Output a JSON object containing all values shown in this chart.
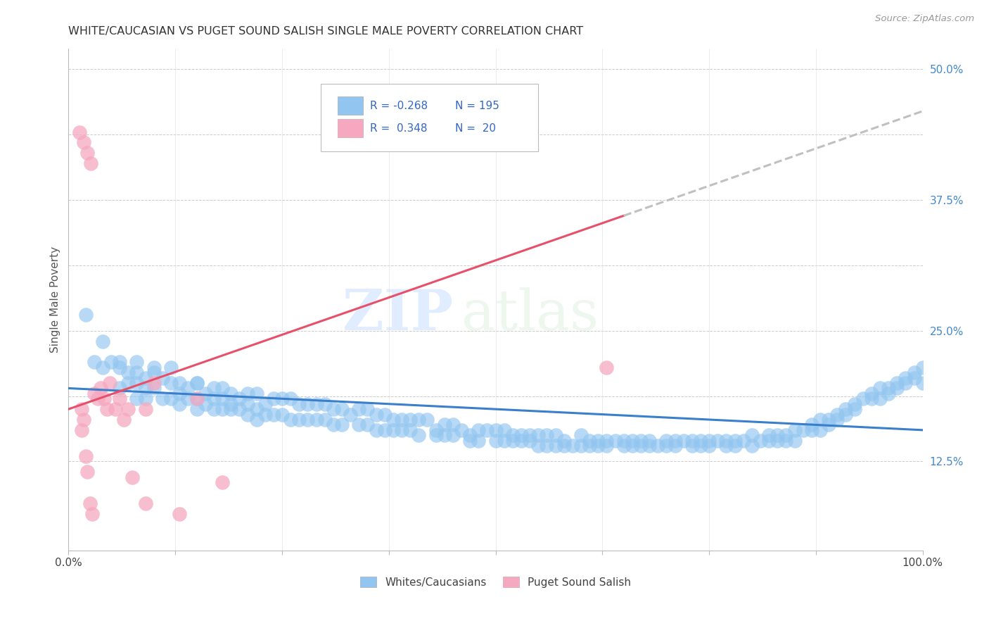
{
  "title": "WHITE/CAUCASIAN VS PUGET SOUND SALISH SINGLE MALE POVERTY CORRELATION CHART",
  "source": "Source: ZipAtlas.com",
  "ylabel": "Single Male Poverty",
  "blue_color": "#92C5F0",
  "pink_color": "#F5A8C0",
  "blue_line_color": "#3A7FCC",
  "pink_line_color": "#E8506A",
  "dash_line_color": "#C0C0C0",
  "legend_label_blue": "Whites/Caucasians",
  "legend_label_pink": "Puget Sound Salish",
  "watermark_zip": "ZIP",
  "watermark_atlas": "atlas",
  "xmin": 0.0,
  "xmax": 1.0,
  "ymin": 0.04,
  "ymax": 0.52,
  "ytick_positions": [
    0.125,
    0.25,
    0.375,
    0.5
  ],
  "ytick_labels": [
    "12.5%",
    "25.0%",
    "37.5%",
    "50.0%"
  ],
  "blue_scatter_x": [
    0.02,
    0.04,
    0.05,
    0.06,
    0.06,
    0.07,
    0.07,
    0.08,
    0.08,
    0.08,
    0.09,
    0.09,
    0.09,
    0.1,
    0.1,
    0.11,
    0.11,
    0.12,
    0.12,
    0.12,
    0.13,
    0.13,
    0.13,
    0.14,
    0.14,
    0.15,
    0.15,
    0.15,
    0.16,
    0.16,
    0.17,
    0.17,
    0.17,
    0.18,
    0.18,
    0.18,
    0.19,
    0.19,
    0.19,
    0.2,
    0.2,
    0.21,
    0.21,
    0.21,
    0.22,
    0.22,
    0.22,
    0.23,
    0.23,
    0.24,
    0.24,
    0.25,
    0.25,
    0.26,
    0.26,
    0.27,
    0.27,
    0.28,
    0.28,
    0.29,
    0.29,
    0.3,
    0.3,
    0.31,
    0.31,
    0.32,
    0.32,
    0.33,
    0.34,
    0.34,
    0.35,
    0.35,
    0.36,
    0.36,
    0.37,
    0.37,
    0.38,
    0.38,
    0.39,
    0.39,
    0.4,
    0.4,
    0.41,
    0.41,
    0.42,
    0.43,
    0.43,
    0.44,
    0.44,
    0.45,
    0.45,
    0.46,
    0.47,
    0.47,
    0.48,
    0.48,
    0.49,
    0.5,
    0.5,
    0.51,
    0.51,
    0.52,
    0.52,
    0.53,
    0.53,
    0.54,
    0.54,
    0.55,
    0.55,
    0.56,
    0.56,
    0.57,
    0.57,
    0.58,
    0.58,
    0.59,
    0.6,
    0.6,
    0.61,
    0.61,
    0.62,
    0.62,
    0.63,
    0.63,
    0.64,
    0.65,
    0.65,
    0.66,
    0.66,
    0.67,
    0.67,
    0.68,
    0.68,
    0.69,
    0.7,
    0.7,
    0.71,
    0.71,
    0.72,
    0.73,
    0.73,
    0.74,
    0.74,
    0.75,
    0.75,
    0.76,
    0.77,
    0.77,
    0.78,
    0.78,
    0.79,
    0.8,
    0.8,
    0.81,
    0.82,
    0.82,
    0.83,
    0.83,
    0.84,
    0.84,
    0.85,
    0.85,
    0.86,
    0.87,
    0.87,
    0.88,
    0.88,
    0.89,
    0.89,
    0.9,
    0.9,
    0.91,
    0.91,
    0.92,
    0.92,
    0.93,
    0.94,
    0.94,
    0.95,
    0.95,
    0.96,
    0.96,
    0.97,
    0.97,
    0.98,
    0.98,
    0.99,
    0.99,
    1.0,
    1.0,
    0.03,
    0.04,
    0.06,
    0.08,
    0.1,
    0.15
  ],
  "blue_scatter_y": [
    0.265,
    0.215,
    0.22,
    0.22,
    0.195,
    0.21,
    0.2,
    0.21,
    0.2,
    0.185,
    0.205,
    0.195,
    0.185,
    0.21,
    0.195,
    0.205,
    0.185,
    0.215,
    0.2,
    0.185,
    0.2,
    0.19,
    0.18,
    0.195,
    0.185,
    0.2,
    0.185,
    0.175,
    0.19,
    0.18,
    0.195,
    0.185,
    0.175,
    0.195,
    0.185,
    0.175,
    0.19,
    0.18,
    0.175,
    0.185,
    0.175,
    0.19,
    0.18,
    0.17,
    0.19,
    0.175,
    0.165,
    0.18,
    0.17,
    0.185,
    0.17,
    0.185,
    0.17,
    0.185,
    0.165,
    0.18,
    0.165,
    0.18,
    0.165,
    0.18,
    0.165,
    0.18,
    0.165,
    0.175,
    0.16,
    0.175,
    0.16,
    0.17,
    0.175,
    0.16,
    0.175,
    0.16,
    0.17,
    0.155,
    0.17,
    0.155,
    0.165,
    0.155,
    0.165,
    0.155,
    0.165,
    0.155,
    0.165,
    0.15,
    0.165,
    0.155,
    0.15,
    0.16,
    0.15,
    0.16,
    0.15,
    0.155,
    0.15,
    0.145,
    0.155,
    0.145,
    0.155,
    0.145,
    0.155,
    0.145,
    0.155,
    0.145,
    0.15,
    0.145,
    0.15,
    0.145,
    0.15,
    0.14,
    0.15,
    0.14,
    0.15,
    0.14,
    0.15,
    0.14,
    0.145,
    0.14,
    0.15,
    0.14,
    0.145,
    0.14,
    0.145,
    0.14,
    0.145,
    0.14,
    0.145,
    0.14,
    0.145,
    0.14,
    0.145,
    0.14,
    0.145,
    0.14,
    0.145,
    0.14,
    0.145,
    0.14,
    0.145,
    0.14,
    0.145,
    0.14,
    0.145,
    0.14,
    0.145,
    0.145,
    0.14,
    0.145,
    0.145,
    0.14,
    0.145,
    0.14,
    0.145,
    0.15,
    0.14,
    0.145,
    0.15,
    0.145,
    0.15,
    0.145,
    0.15,
    0.145,
    0.155,
    0.145,
    0.155,
    0.16,
    0.155,
    0.165,
    0.155,
    0.165,
    0.16,
    0.17,
    0.165,
    0.175,
    0.17,
    0.18,
    0.175,
    0.185,
    0.19,
    0.185,
    0.195,
    0.185,
    0.195,
    0.19,
    0.2,
    0.195,
    0.205,
    0.2,
    0.21,
    0.205,
    0.215,
    0.2,
    0.22,
    0.24,
    0.215,
    0.22,
    0.215,
    0.2
  ],
  "pink_scatter_x": [
    0.013,
    0.018,
    0.022,
    0.026,
    0.03,
    0.034,
    0.038,
    0.042,
    0.045,
    0.048,
    0.055,
    0.06,
    0.065,
    0.07,
    0.075,
    0.09,
    0.1,
    0.15,
    0.18,
    0.63
  ],
  "pink_scatter_y": [
    0.44,
    0.43,
    0.42,
    0.41,
    0.19,
    0.185,
    0.195,
    0.185,
    0.175,
    0.2,
    0.175,
    0.185,
    0.165,
    0.175,
    0.11,
    0.175,
    0.2,
    0.185,
    0.105,
    0.215
  ],
  "pink_extra_low_x": [
    0.015,
    0.015,
    0.018,
    0.02,
    0.022,
    0.025,
    0.028,
    0.09,
    0.13
  ],
  "pink_extra_low_y": [
    0.175,
    0.155,
    0.165,
    0.13,
    0.115,
    0.085,
    0.075,
    0.085,
    0.075
  ],
  "blue_line_x0": 0.0,
  "blue_line_y0": 0.195,
  "blue_line_x1": 1.0,
  "blue_line_y1": 0.155,
  "pink_line_x0": 0.0,
  "pink_line_y0": 0.175,
  "pink_line_x1": 0.65,
  "pink_line_y1": 0.36,
  "dash_line_x0": 0.65,
  "dash_line_y0": 0.36,
  "dash_line_x1": 1.0,
  "dash_line_y1": 0.46
}
